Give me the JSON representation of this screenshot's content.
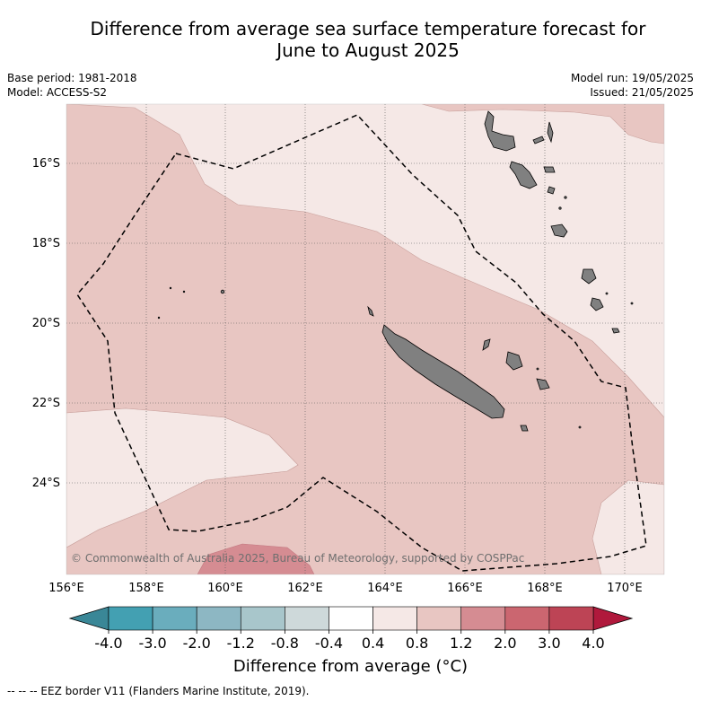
{
  "title": {
    "line1": "Difference from average sea surface temperature forecast for",
    "line2": "June to August 2025"
  },
  "meta": {
    "base_period": "Base period: 1981-2018",
    "model": "Model: ACCESS-S2",
    "model_run": "Model run: 19/05/2025",
    "issued": "Issued: 21/05/2025"
  },
  "map": {
    "lat_labels": [
      "16°S",
      "18°S",
      "20°S",
      "22°S",
      "24°S"
    ],
    "lon_labels": [
      "156°E",
      "158°E",
      "160°E",
      "162°E",
      "164°E",
      "166°E",
      "168°E",
      "170°E"
    ],
    "copyright": "© Commonwealth of Australia 2025, Bureau of Meteorology, supported by COSPPac",
    "colors": {
      "band_04_08": "#f5e8e6",
      "band_08_12": "#e8c6c2",
      "band_12_20": "#d58c92",
      "land": "#808080",
      "border": "#000000"
    }
  },
  "colorbar": {
    "ticks": [
      "-4.0",
      "-3.0",
      "-2.0",
      "-1.2",
      "-0.8",
      "-0.4",
      "0.4",
      "0.8",
      "1.2",
      "2.0",
      "3.0",
      "4.0"
    ],
    "colors": [
      "#43a0b2",
      "#6aadbd",
      "#8db7c3",
      "#a8c6cb",
      "#ced9da",
      "#ffffff",
      "#f5e8e6",
      "#e8c6c2",
      "#d58c92",
      "#cb6670",
      "#bd4455"
    ],
    "low_color": "#3a8797",
    "high_color": "#b0193c",
    "title": "Difference from average (°C)"
  },
  "footnote": "--  --  -- EEZ border V11 (Flanders Marine Institute, 2019)."
}
